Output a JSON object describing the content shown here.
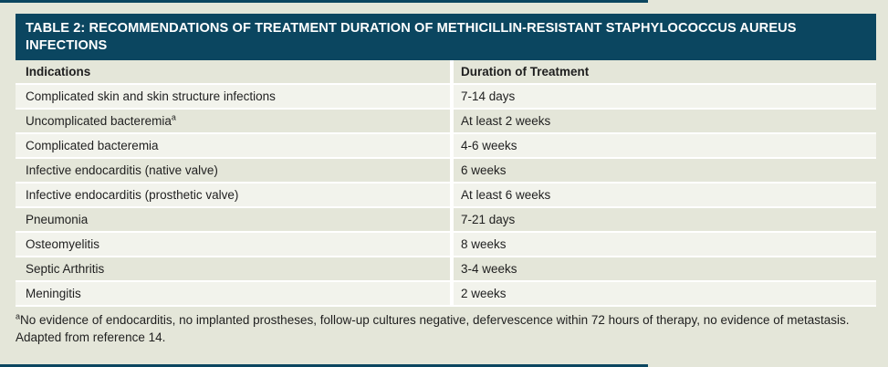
{
  "title": "TABLE 2: RECOMMENDATIONS OF TREATMENT DURATION OF METHICILLIN-RESISTANT STAPHYLOCOCCUS AUREUS INFECTIONS",
  "table": {
    "columns": [
      "Indications",
      "Duration of Treatment"
    ],
    "rows": [
      {
        "indication": "Complicated skin and skin structure infections",
        "duration": "7-14 days"
      },
      {
        "indication": "Uncomplicated bacteremia",
        "indication_sup": "a",
        "duration": "At least 2 weeks"
      },
      {
        "indication": "Complicated bacteremia",
        "duration": "4-6 weeks"
      },
      {
        "indication": "Infective endocarditis (native valve)",
        "duration": "6 weeks"
      },
      {
        "indication": "Infective endocarditis (prosthetic valve)",
        "duration": "At least 6 weeks"
      },
      {
        "indication": "Pneumonia",
        "duration": "7-21 days"
      },
      {
        "indication": "Osteomyelitis",
        "duration": "8 weeks"
      },
      {
        "indication": "Septic Arthritis",
        "duration": "3-4 weeks"
      },
      {
        "indication": "Meningitis",
        "duration": "2 weeks"
      }
    ]
  },
  "footnotes": {
    "marker": "a",
    "note": "No evidence of endocarditis, no implanted prostheses, follow-up cultures negative, defervescence within 72 hours of therapy, no evidence of metastasis.",
    "source": "Adapted from reference 14."
  },
  "colors": {
    "header_bg": "#0b4660",
    "title_text": "#ffffff",
    "row_light": "#f2f3ec",
    "row_beige": "#e4e6d9",
    "page_bg": "#e4e6d9",
    "divider": "#ffffff",
    "body_text": "#1f1f1f"
  }
}
